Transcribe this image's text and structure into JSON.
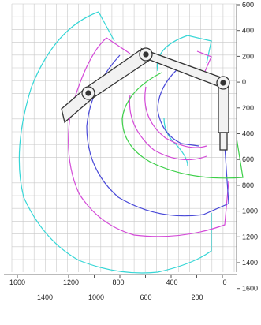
{
  "diagram": {
    "y_axis_labels": [
      "600",
      "400",
      "200",
      "0",
      "200",
      "400",
      "600",
      "800",
      "1000",
      "1200",
      "1400",
      "1600"
    ],
    "x_axis_labels_upper": [
      "1600",
      "1200",
      "800",
      "400",
      "0"
    ],
    "x_axis_labels_lower": [
      "1400",
      "1000",
      "600",
      "200"
    ],
    "curve_colors": {
      "cyan": "#36d6d6",
      "magenta": "#d44ad8",
      "blue": "#4a4ad8",
      "green": "#3ccf48"
    },
    "boom_color": "#333333"
  }
}
